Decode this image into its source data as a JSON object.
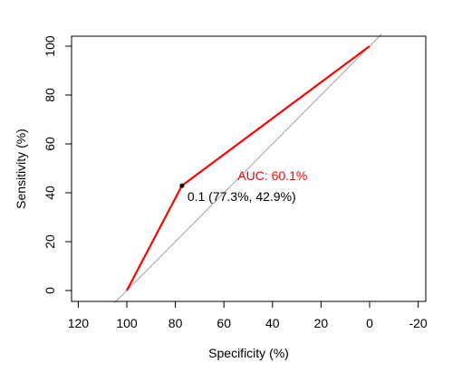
{
  "chart_data": {
    "type": "line",
    "title": "",
    "xlabel": "Specificity (%)",
    "ylabel": "Sensitivity (%)",
    "x_reversed": true,
    "xlim": [
      120,
      -20
    ],
    "ylim": [
      0,
      100
    ],
    "x_ticks": [
      120,
      100,
      80,
      60,
      40,
      20,
      0,
      -20
    ],
    "y_ticks": [
      0,
      20,
      40,
      60,
      80,
      100
    ],
    "grid": false,
    "legend": "none",
    "series": [
      {
        "color": "#ff0000",
        "x": [
          100,
          77.3,
          0
        ],
        "y": [
          0,
          42.9,
          100
        ]
      }
    ],
    "reference_line": {
      "color": "#a0a0a0",
      "x": [
        100,
        0
      ],
      "y": [
        0,
        100
      ]
    },
    "threshold_point": {
      "x": 77.3,
      "y": 42.9,
      "label": "0.1 (77.3%, 42.9%)",
      "color": "#000000"
    },
    "auc_label": {
      "text": "AUC: 60.1%",
      "color": "#ff0000",
      "x": 40,
      "y": 47
    }
  }
}
